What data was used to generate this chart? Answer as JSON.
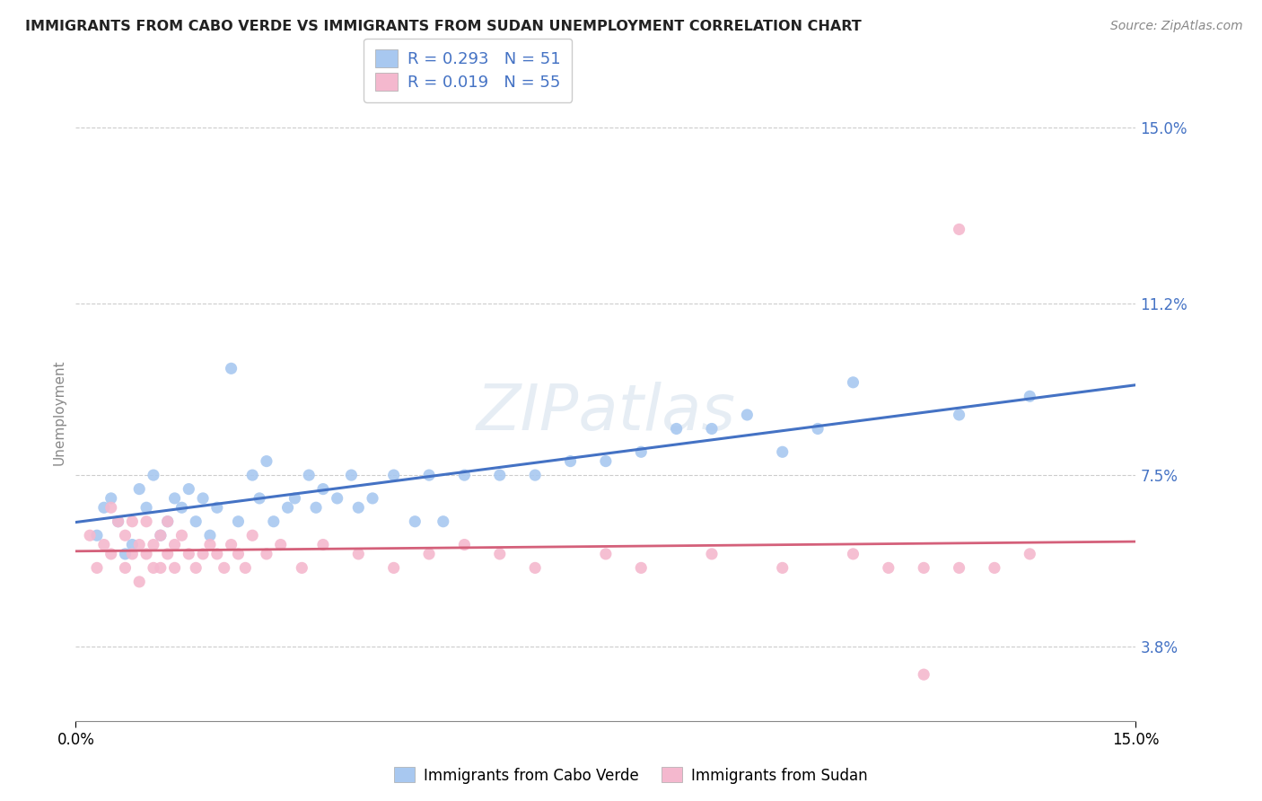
{
  "title": "IMMIGRANTS FROM CABO VERDE VS IMMIGRANTS FROM SUDAN UNEMPLOYMENT CORRELATION CHART",
  "source": "Source: ZipAtlas.com",
  "ylabel": "Unemployment",
  "xmin": 0.0,
  "xmax": 0.15,
  "ymin": 2.2,
  "ymax": 15.5,
  "y_ticks": [
    3.8,
    7.5,
    11.2,
    15.0
  ],
  "legend_r1": "R = 0.293",
  "legend_n1": "N = 51",
  "legend_r2": "R = 0.019",
  "legend_n2": "N = 55",
  "color_cabo": "#a8c8f0",
  "color_sudan": "#f4b8ce",
  "line_color_cabo": "#4472c4",
  "line_color_sudan": "#d4607a",
  "cabo_verde_x": [
    0.003,
    0.004,
    0.005,
    0.006,
    0.007,
    0.008,
    0.009,
    0.01,
    0.011,
    0.012,
    0.013,
    0.014,
    0.015,
    0.016,
    0.017,
    0.018,
    0.019,
    0.02,
    0.022,
    0.023,
    0.025,
    0.026,
    0.027,
    0.028,
    0.03,
    0.031,
    0.033,
    0.034,
    0.035,
    0.037,
    0.039,
    0.04,
    0.042,
    0.045,
    0.048,
    0.05,
    0.052,
    0.055,
    0.06,
    0.065,
    0.07,
    0.075,
    0.08,
    0.085,
    0.09,
    0.095,
    0.1,
    0.105,
    0.11,
    0.125,
    0.135
  ],
  "cabo_verde_y": [
    6.2,
    6.8,
    7.0,
    6.5,
    5.8,
    6.0,
    7.2,
    6.8,
    7.5,
    6.2,
    6.5,
    7.0,
    6.8,
    7.2,
    6.5,
    7.0,
    6.2,
    6.8,
    9.8,
    6.5,
    7.5,
    7.0,
    7.8,
    6.5,
    6.8,
    7.0,
    7.5,
    6.8,
    7.2,
    7.0,
    7.5,
    6.8,
    7.0,
    7.5,
    6.5,
    7.5,
    6.5,
    7.5,
    7.5,
    7.5,
    7.8,
    7.8,
    8.0,
    8.5,
    8.5,
    8.8,
    8.0,
    8.5,
    9.5,
    8.8,
    9.2
  ],
  "sudan_x": [
    0.002,
    0.003,
    0.004,
    0.005,
    0.005,
    0.006,
    0.007,
    0.007,
    0.008,
    0.008,
    0.009,
    0.009,
    0.01,
    0.01,
    0.011,
    0.011,
    0.012,
    0.012,
    0.013,
    0.013,
    0.014,
    0.014,
    0.015,
    0.016,
    0.017,
    0.018,
    0.019,
    0.02,
    0.021,
    0.022,
    0.023,
    0.024,
    0.025,
    0.027,
    0.029,
    0.032,
    0.035,
    0.04,
    0.045,
    0.05,
    0.055,
    0.06,
    0.065,
    0.075,
    0.08,
    0.09,
    0.1,
    0.11,
    0.115,
    0.12,
    0.125,
    0.13,
    0.135,
    0.12,
    0.125
  ],
  "sudan_y": [
    6.2,
    5.5,
    6.0,
    6.8,
    5.8,
    6.5,
    5.5,
    6.2,
    5.8,
    6.5,
    5.2,
    6.0,
    5.8,
    6.5,
    5.5,
    6.0,
    5.5,
    6.2,
    5.8,
    6.5,
    5.5,
    6.0,
    6.2,
    5.8,
    5.5,
    5.8,
    6.0,
    5.8,
    5.5,
    6.0,
    5.8,
    5.5,
    6.2,
    5.8,
    6.0,
    5.5,
    6.0,
    5.8,
    5.5,
    5.8,
    6.0,
    5.8,
    5.5,
    5.8,
    5.5,
    5.8,
    5.5,
    5.8,
    5.5,
    3.2,
    5.5,
    5.5,
    5.8,
    5.5,
    12.8
  ]
}
